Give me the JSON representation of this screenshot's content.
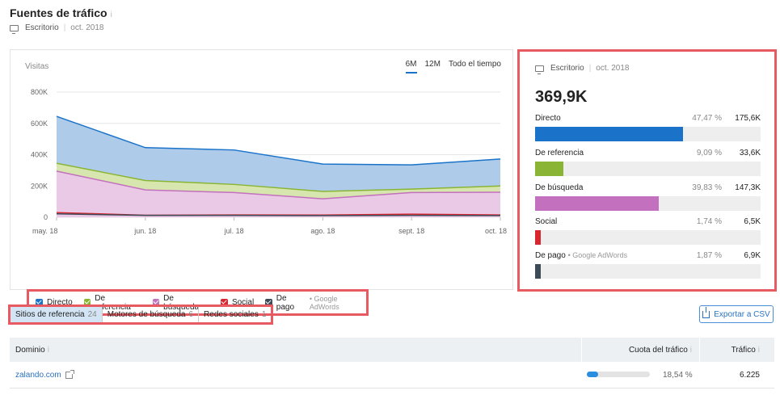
{
  "header": {
    "title": "Fuentes de tráfico",
    "info_icon": "i",
    "device": "Escritorio",
    "separator": "|",
    "date": "oct. 2018"
  },
  "chart_panel": {
    "metric_label": "Visitas",
    "periods": [
      "6M",
      "12M",
      "Todo el tiempo"
    ],
    "active_period": "6M"
  },
  "chart_data": {
    "type": "area",
    "stacked": false,
    "categories": [
      "may. 18",
      "jun. 18",
      "jul. 18",
      "ago. 18",
      "sept. 18",
      "oct. 18"
    ],
    "x_labels": [
      "may. 18",
      "jun. 18",
      "jul. 18",
      "ago. 18",
      "sept. 18",
      "oct. 18"
    ],
    "ylim": [
      0,
      800000
    ],
    "y_ticks": [
      0,
      200000,
      400000,
      600000,
      800000
    ],
    "y_tick_labels": [
      "0",
      "200K",
      "400K",
      "600K",
      "800K"
    ],
    "grid": true,
    "series": [
      {
        "name": "Directo",
        "color": "#1a73c8",
        "fill": "#aecbea",
        "values": [
          645000,
          445000,
          430000,
          340000,
          335000,
          372000
        ]
      },
      {
        "name": "De referencia",
        "color": "#8ab534",
        "fill": "#d6e6ae",
        "values": [
          345000,
          235000,
          210000,
          165000,
          180000,
          200000
        ]
      },
      {
        "name": "De búsqueda",
        "color": "#c370be",
        "fill": "#e9c9e6",
        "values": [
          295000,
          175000,
          158000,
          118000,
          158000,
          160000
        ]
      },
      {
        "name": "Social",
        "color": "#d9262e",
        "values": [
          30000,
          13000,
          15000,
          14000,
          20000,
          15000
        ]
      },
      {
        "name": "De pago",
        "color": "#3d4a58",
        "values": [
          22000,
          12000,
          12000,
          11000,
          12000,
          11000
        ]
      }
    ]
  },
  "legend": {
    "items": [
      {
        "label": "Directo",
        "color": "#1a73c8"
      },
      {
        "label": "De referencia",
        "color": "#8ab534"
      },
      {
        "label": "De búsqueda",
        "color": "#c370be"
      },
      {
        "label": "Social",
        "color": "#d9262e"
      },
      {
        "label": "De pago",
        "color": "#3d4a58",
        "source": "• Google AdWords"
      }
    ]
  },
  "summary": {
    "device": "Escritorio",
    "separator": "|",
    "date": "oct. 2018",
    "total": "369,9K",
    "rows": [
      {
        "name": "Directo",
        "percent": "47,47 %",
        "value": "175,6K",
        "share": 0.4747,
        "color": "#1a73c8"
      },
      {
        "name": "De referencia",
        "percent": "9,09 %",
        "value": "33,6K",
        "share": 0.0909,
        "color": "#8ab534"
      },
      {
        "name": "De búsqueda",
        "percent": "39,83 %",
        "value": "147,3K",
        "share": 0.3983,
        "color": "#c370be"
      },
      {
        "name": "Social",
        "percent": "1,74 %",
        "value": "6,5K",
        "share": 0.0174,
        "color": "#d9262e"
      },
      {
        "name": "De pago",
        "source": "• Google AdWords",
        "percent": "1,87 %",
        "value": "6,9K",
        "share": 0.0187,
        "color": "#3d4a58"
      }
    ]
  },
  "tabs": [
    {
      "label": "Sitios de referencia",
      "count": "24",
      "active": true
    },
    {
      "label": "Motores de búsqueda",
      "count": "6",
      "active": false
    },
    {
      "label": "Redes sociales",
      "count": "1",
      "active": false
    }
  ],
  "export_label": "Exportar a CSV",
  "table": {
    "columns": [
      "Dominio",
      "Cuota del tráfico",
      "Tráfico"
    ],
    "info_icon": "i",
    "rows": [
      {
        "domain": "zalando.com",
        "share_text": "18,54 %",
        "share": 0.1854,
        "traffic": "6.225"
      }
    ]
  }
}
